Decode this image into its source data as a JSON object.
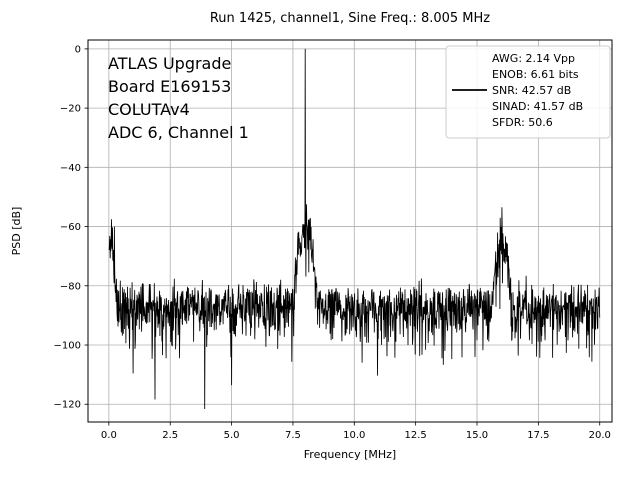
{
  "figure": {
    "background": "#ffffff"
  },
  "chart_data": {
    "type": "line",
    "title": "Run 1425, channel1, Sine Freq.: 8.005 MHz",
    "xlabel": "Frequency [MHz]",
    "ylabel": "PSD [dB]",
    "xlim": [
      -0.85,
      20.5
    ],
    "ylim": [
      -126,
      3
    ],
    "xticks": [
      0.0,
      2.5,
      5.0,
      7.5,
      10.0,
      12.5,
      15.0,
      17.5,
      20.0
    ],
    "xtick_labels": [
      "0.0",
      "2.5",
      "5.0",
      "7.5",
      "10.0",
      "12.5",
      "15.0",
      "17.5",
      "20.0"
    ],
    "yticks": [
      0,
      -20,
      -40,
      -60,
      -80,
      -100,
      -120
    ],
    "ytick_labels": [
      "0",
      "−20",
      "−40",
      "−60",
      "−80",
      "−100",
      "−120"
    ],
    "grid": true,
    "grid_color": "#b0b0b0",
    "line_color": "#000000",
    "peaks_of_interest": [
      {
        "freq_mhz": 8.005,
        "psd_db": 0,
        "label": "fundamental tone"
      },
      {
        "freq_mhz": 16.01,
        "psd_db": -53,
        "label": "second harmonic"
      },
      {
        "freq_mhz": 0.1,
        "psd_db": -57,
        "label": "low-frequency spur"
      }
    ],
    "noise_floor_db_approx": -86,
    "series": [
      {
        "name": "PSD",
        "color": "#000000",
        "synthesis": {
          "n_points": 1500,
          "freq_range": [
            0.013,
            20.0
          ],
          "noise_floor_db": -86,
          "seed": 1425,
          "skirts": [
            {
              "freq": 0.05,
              "peak_db": -68,
              "width": 0.22
            },
            {
              "freq": 8.005,
              "peak_db": -59,
              "width": 0.32
            },
            {
              "freq": 16.01,
              "peak_db": -64,
              "width": 0.28
            }
          ],
          "tones": [
            {
              "freq": 0.1,
              "level_db": -57.5
            },
            {
              "freq": 0.22,
              "level_db": -60
            },
            {
              "freq": 8.005,
              "level_db": 0
            },
            {
              "freq": 8.05,
              "level_db": -52.5
            },
            {
              "freq": 15.95,
              "level_db": -57
            },
            {
              "freq": 16.01,
              "level_db": -53.5
            }
          ]
        }
      }
    ]
  },
  "annotation": {
    "lines": [
      "ATLAS Upgrade",
      " Board E169153",
      "COLUTAv4",
      "ADC 6, Channel 1"
    ]
  },
  "legend": {
    "entries": [
      "AWG: 2.14 Vpp",
      "ENOB: 6.61 bits",
      "SNR: 42.57 dB",
      "SINAD: 41.57 dB",
      "SFDR: 50.6"
    ],
    "line_entry_index": 2
  }
}
